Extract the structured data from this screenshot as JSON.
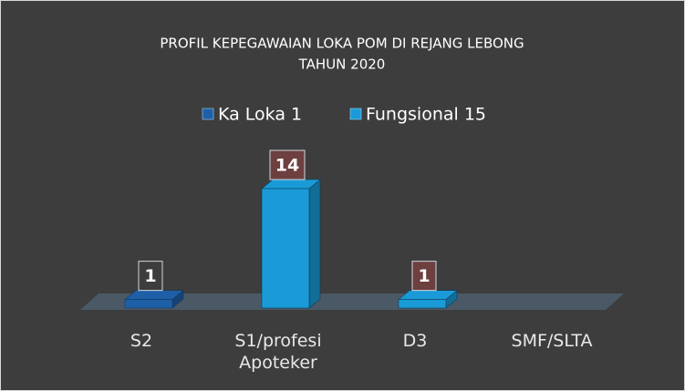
{
  "chart_data": {
    "type": "bar3d",
    "title": "PROFIL KEPEGAWAIAN LOKA POM DI REJANG LEBONG",
    "subtitle": "TAHUN 2020",
    "categories": [
      "S2",
      "S1/profesi Apoteker",
      "D3",
      "SMF/SLTA"
    ],
    "series": [
      {
        "name": "Ka Loka 1",
        "color": "#1f5fa8",
        "values": [
          1,
          null,
          null,
          null
        ]
      },
      {
        "name": "Fungsional 15",
        "color": "#1a9bd7",
        "values": [
          null,
          14,
          1,
          null
        ]
      }
    ],
    "legend": "top"
  }
}
